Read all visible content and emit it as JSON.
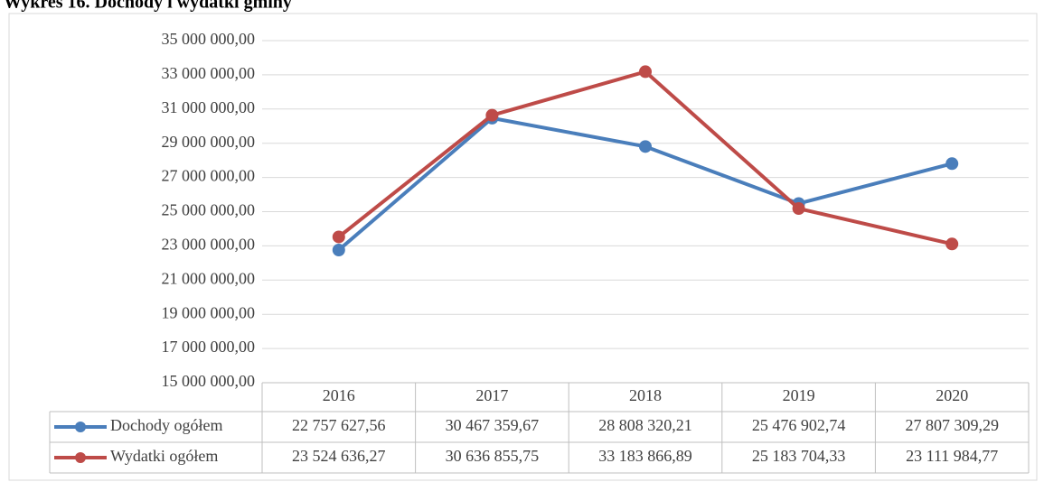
{
  "chart_data": {
    "type": "line",
    "title": "Wykres 16. Dochody i wydatki gminy",
    "categories": [
      "2016",
      "2017",
      "2018",
      "2019",
      "2020"
    ],
    "series": [
      {
        "name": "Dochody ogółem",
        "color": "#4a7ebb",
        "values": [
          22757627.56,
          30467359.67,
          28808320.21,
          25476902.74,
          27807309.29
        ],
        "value_labels": [
          "22 757 627,56",
          "30 467 359,67",
          "28 808 320,21",
          "25 476 902,74",
          "27 807 309,29"
        ]
      },
      {
        "name": "Wydatki ogółem",
        "color": "#be4b48",
        "values": [
          23524636.27,
          30636855.75,
          33183866.89,
          25183704.33,
          23111984.77
        ],
        "value_labels": [
          "23 524 636,27",
          "30 636 855,75",
          "33 183 866,89",
          "25 183 704,33",
          "23 111 984,77"
        ]
      }
    ],
    "ylim": [
      15000000,
      35000000
    ],
    "yticks": [
      {
        "value": 15000000,
        "label": "15 000 000,00"
      },
      {
        "value": 17000000,
        "label": "17 000 000,00"
      },
      {
        "value": 19000000,
        "label": "19 000 000,00"
      },
      {
        "value": 21000000,
        "label": "21 000 000,00"
      },
      {
        "value": 23000000,
        "label": "23 000 000,00"
      },
      {
        "value": 25000000,
        "label": "25 000 000,00"
      },
      {
        "value": 27000000,
        "label": "27 000 000,00"
      },
      {
        "value": 29000000,
        "label": "29 000 000,00"
      },
      {
        "value": 31000000,
        "label": "31 000 000,00"
      },
      {
        "value": 33000000,
        "label": "33 000 000,00"
      },
      {
        "value": 35000000,
        "label": "35 000 000,00"
      }
    ],
    "grid": true
  }
}
